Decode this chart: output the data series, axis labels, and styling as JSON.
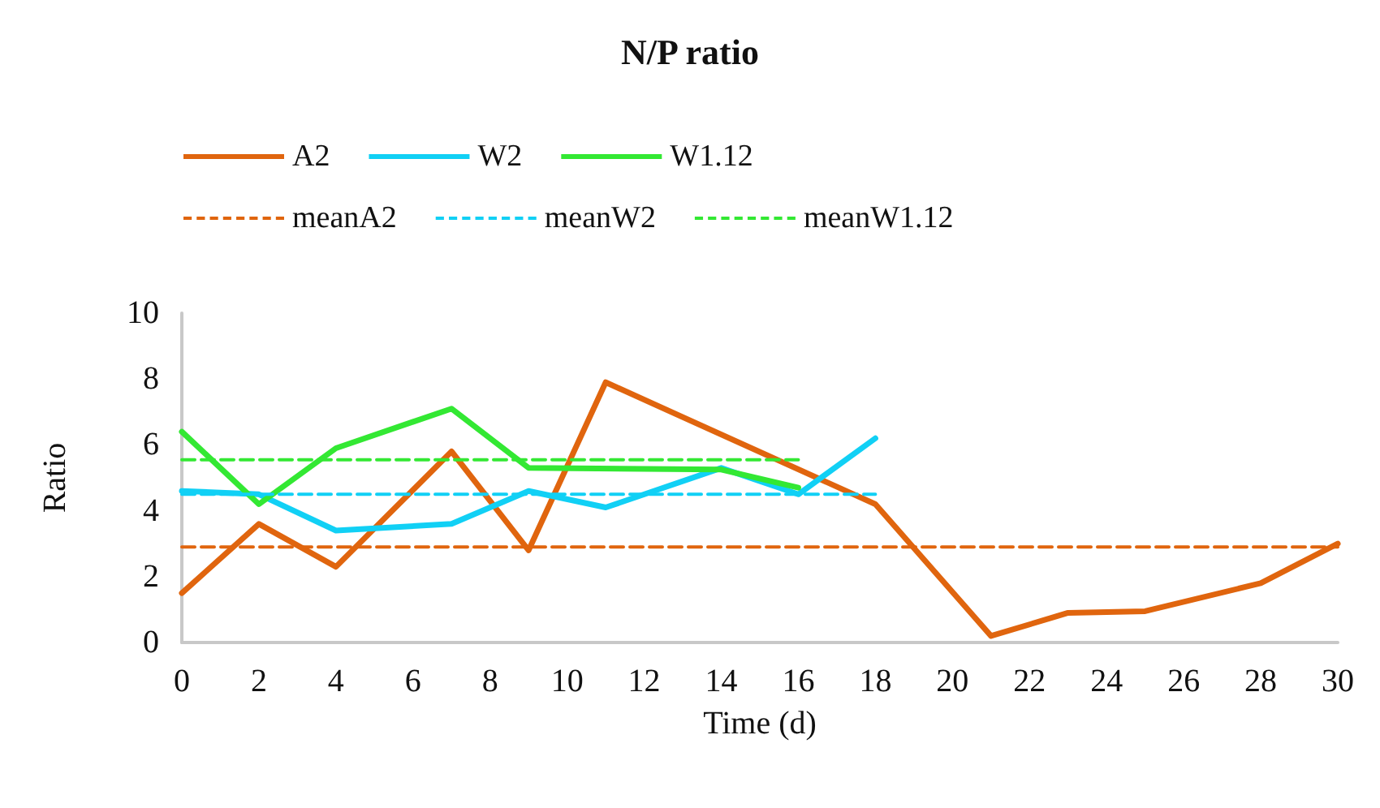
{
  "chart_data": {
    "type": "line",
    "title": "N/P ratio",
    "xlabel": "Time (d)",
    "ylabel": "Ratio",
    "xlim": [
      0,
      30
    ],
    "xticks": [
      0,
      2,
      4,
      6,
      8,
      10,
      12,
      14,
      16,
      18,
      20,
      22,
      24,
      26,
      28,
      30
    ],
    "ylim": [
      0,
      10
    ],
    "yticks": [
      0,
      2,
      4,
      6,
      8,
      10
    ],
    "grid": false,
    "legend": "top",
    "marker": "none",
    "series": [
      {
        "name": "A2",
        "color": "#e0650e",
        "line_style": "solid",
        "x": [
          0,
          2,
          4,
          7,
          9,
          11,
          18,
          21,
          23,
          25,
          28,
          30
        ],
        "values": [
          1.5,
          3.6,
          2.3,
          5.8,
          2.8,
          7.9,
          4.2,
          0.2,
          0.9,
          0.95,
          1.8,
          3.0
        ]
      },
      {
        "name": "W2",
        "color": "#11d0f5",
        "line_style": "solid",
        "x": [
          0,
          2,
          4,
          7,
          9,
          11,
          14,
          16,
          18
        ],
        "values": [
          4.6,
          4.5,
          3.4,
          3.6,
          4.6,
          4.1,
          5.3,
          4.5,
          6.2
        ]
      },
      {
        "name": "W1.12",
        "color": "#33e833",
        "line_style": "solid",
        "x": [
          0,
          2,
          4,
          7,
          9,
          14,
          16
        ],
        "values": [
          6.4,
          4.2,
          5.9,
          7.1,
          5.3,
          5.25,
          4.7
        ]
      },
      {
        "name": "meanA2",
        "color": "#e0650e",
        "line_style": "dashed",
        "x": [
          0,
          30
        ],
        "values": [
          2.9,
          2.9
        ]
      },
      {
        "name": "meanW2",
        "color": "#11d0f5",
        "line_style": "dashed",
        "x": [
          0,
          18
        ],
        "values": [
          4.5,
          4.5
        ]
      },
      {
        "name": "meanW1.12",
        "color": "#33e833",
        "line_style": "dashed",
        "x": [
          0,
          16
        ],
        "values": [
          5.55,
          5.55
        ]
      }
    ]
  }
}
